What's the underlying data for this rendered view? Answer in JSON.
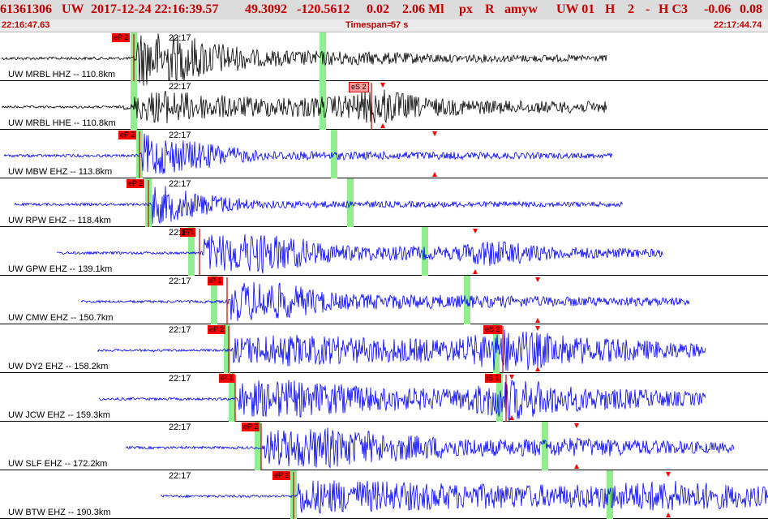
{
  "header": {
    "event_id": "61361306",
    "network": "UW",
    "origin_time": "2017-12-24 22:16:39.57",
    "latitude": "49.3092",
    "longitude": "-120.5612",
    "depth": "0.02",
    "magnitude": "2.06 Ml",
    "event_type": "px",
    "review_flag": "R",
    "analyst": "amyw",
    "auth": "UW 01",
    "h_flag": "H",
    "h_count": "2",
    "dash": "-",
    "h_code": "H C3",
    "value_a": "-0.06",
    "value_b": "0.08"
  },
  "timebar": {
    "start": "22:16:47.63",
    "timespan_label": "Timespan=",
    "timespan_value": "57 s",
    "end": "22:17:44.74"
  },
  "minute_label": "22:17",
  "colors": {
    "header_bg": "#dcdcdc",
    "header_text": "#c80000",
    "trace_first": "#000000",
    "trace_other": "#0000ff",
    "pick_bg": "#ff0000",
    "pick_light_bg": "#ff9999",
    "pick_line": "#c80000",
    "window_marker": "#90ee90",
    "theory_marker": "#ff0000"
  },
  "channels": [
    {
      "label": "UW MRBL HHZ -- 110.8km",
      "pick": {
        "text": "eP 2",
        "style": "red"
      }
    },
    {
      "label": "UW MRBL HHE -- 110.8km",
      "pick": {
        "text": "eS 2",
        "style": "light"
      }
    },
    {
      "label": "UW MBW EHZ -- 113.8km",
      "pick": {
        "text": "eP 2",
        "style": "red"
      }
    },
    {
      "label": "UW RPW EHZ -- 118.4km",
      "pick": {
        "text": "eP 2",
        "style": "red"
      }
    },
    {
      "label": "UW GPW EHZ -- 139.1km",
      "pick": {
        "text": "iP 1",
        "style": "red"
      }
    },
    {
      "label": "UW CMW EHZ -- 150.7km",
      "pick": {
        "text": "iP 1",
        "style": "red"
      }
    },
    {
      "label": "UW DY2 EHZ -- 158.2km",
      "pick": {
        "text": "eP 2",
        "style": "red"
      },
      "pick2": {
        "text": "eS 2",
        "style": "red"
      }
    },
    {
      "label": "UW JCW EHZ -- 159.3km",
      "pick": {
        "text": "iP 1",
        "style": "red"
      },
      "pick2": {
        "text": "iS 1",
        "style": "red"
      }
    },
    {
      "label": "UW SLF EHZ -- 172.2km",
      "pick": {
        "text": "eP 2",
        "style": "red"
      }
    },
    {
      "label": "UW BTW EHZ -- 190.3km",
      "pick": {
        "text": "eP 2",
        "style": "red"
      }
    }
  ]
}
